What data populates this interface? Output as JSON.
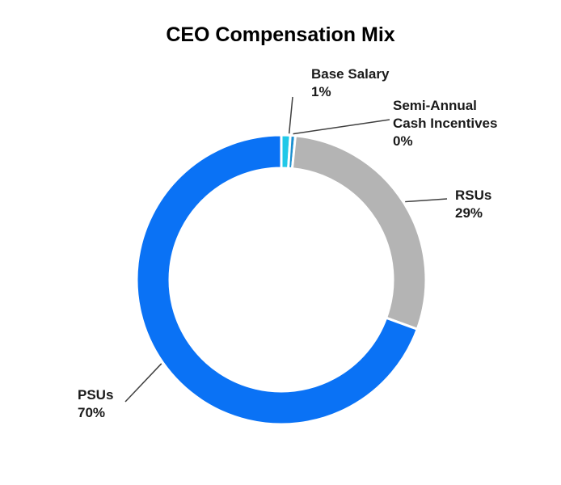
{
  "chart_data": {
    "type": "pie",
    "style": "donut",
    "title": "CEO Compensation Mix",
    "slices": [
      {
        "label_lines": [
          "Base Salary"
        ],
        "value": 1,
        "value_label": "1%",
        "color": "#20c8e8"
      },
      {
        "label_lines": [
          "Semi-Annual",
          "Cash Incentives"
        ],
        "value": 0,
        "value_label": "0%",
        "color": "#1a8fd0"
      },
      {
        "label_lines": [
          "RSUs"
        ],
        "value": 29,
        "value_label": "29%",
        "color": "#b4b4b4"
      },
      {
        "label_lines": [
          "PSUs"
        ],
        "value": 70,
        "value_label": "70%",
        "color": "#0a72f5"
      }
    ]
  }
}
